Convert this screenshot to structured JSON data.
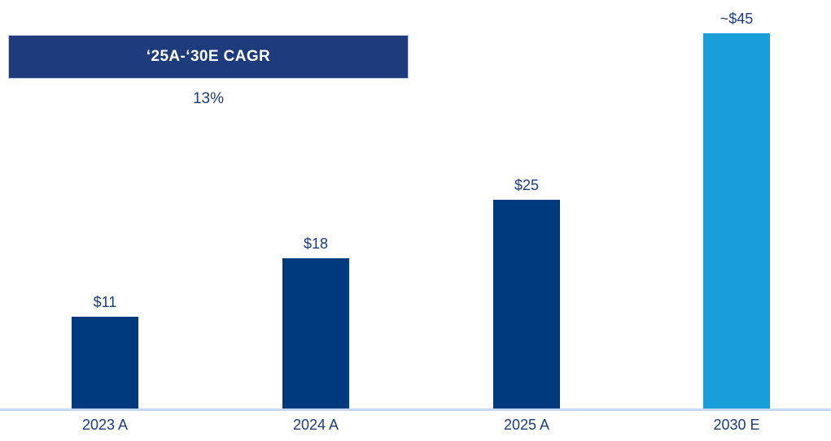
{
  "colors": {
    "background": "#FFFFFF",
    "navy_bar": "#003A7E",
    "cyan_bar": "#1A9ED9",
    "banner_bg": "#1E3B7C",
    "banner_text": "#FFFFFF",
    "label_text": "#1D3C7D",
    "axis_line": "#C5D8F0"
  },
  "banner": {
    "label": "‘25A-‘30E CAGR",
    "value": "13%"
  },
  "chart_data": {
    "type": "bar",
    "title": "",
    "xlabel": "",
    "ylabel": "",
    "categories": [
      "2023 A",
      "2024 A",
      "2025 A",
      "2030 E"
    ],
    "values": [
      11,
      18,
      25,
      45
    ],
    "value_labels": [
      "$11",
      "$18",
      "$25",
      "~$45"
    ],
    "bar_colors": [
      "#003A7E",
      "#003A7E",
      "#003A7E",
      "#1A9ED9"
    ],
    "ylim": [
      0,
      45
    ],
    "grid": false,
    "legend": false,
    "axis_labels_visible": false,
    "annotation": {
      "label": "‘25A-‘30E CAGR",
      "value": "13%"
    }
  }
}
